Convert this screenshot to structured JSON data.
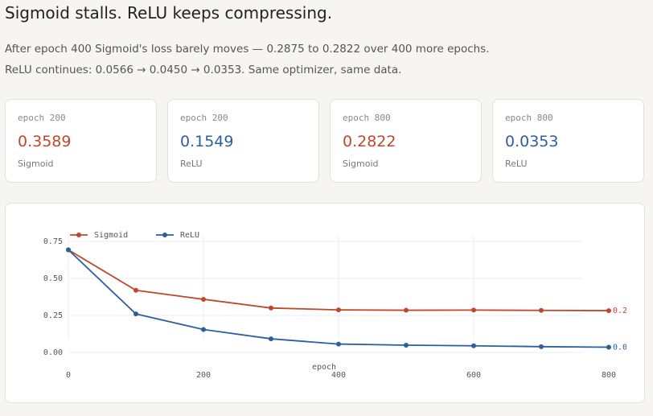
{
  "header": {
    "title": "Sigmoid stalls. ReLU keeps compressing.",
    "description": "After epoch 400 Sigmoid's loss barely moves — 0.2875 to 0.2822 over 400 more epochs. ReLU continues: 0.0566 → 0.0450 → 0.0353. Same optimizer, same data."
  },
  "cards": [
    {
      "epoch": "epoch 200",
      "value": 0.3589,
      "model": "Sigmoid",
      "color": "#c0472c"
    },
    {
      "epoch": "epoch 200",
      "value": 0.1549,
      "model": "ReLU",
      "color": "#2b5f9e"
    },
    {
      "epoch": "epoch 800",
      "value": 0.2822,
      "model": "Sigmoid",
      "color": "#c0472c"
    },
    {
      "epoch": "epoch 800",
      "value": 0.0353,
      "model": "ReLU",
      "color": "#2b5f9e"
    }
  ],
  "chart_data": {
    "type": "line",
    "x_label": "epoch",
    "x": [
      0,
      100,
      200,
      300,
      400,
      500,
      600,
      700,
      800
    ],
    "series": [
      {
        "name": "Sigmoid",
        "color": "#c0472c",
        "values": [
          0.693,
          0.42,
          0.3589,
          0.3,
          0.2875,
          0.285,
          0.286,
          0.284,
          0.2822
        ]
      },
      {
        "name": "ReLU",
        "color": "#2b5f9e",
        "values": [
          0.693,
          0.26,
          0.1549,
          0.092,
          0.0566,
          0.049,
          0.045,
          0.039,
          0.0353
        ]
      }
    ],
    "xlim": [
      0,
      800
    ],
    "xticks": [
      0,
      200,
      400,
      600,
      800
    ],
    "ylim": [
      -0.05,
      0.8
    ],
    "yticks": [
      {
        "value": 0,
        "label": "0.00"
      },
      {
        "value": 0.25,
        "label": "0.25"
      },
      {
        "value": 0.5,
        "label": "0.50"
      },
      {
        "value": 0.75,
        "label": "0.75"
      }
    ],
    "grid": true
  }
}
